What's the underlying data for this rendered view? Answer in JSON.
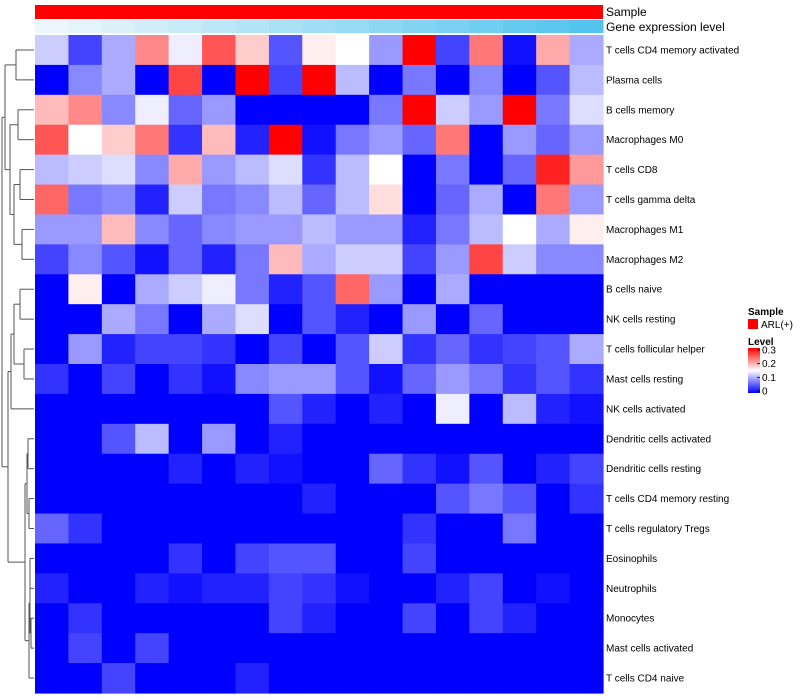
{
  "chart_data": {
    "type": "heatmap",
    "title": "",
    "annotations": [
      {
        "label": "Sample",
        "value": "ARL(+)",
        "color": "#FF0000"
      },
      {
        "label": "Gene expression level",
        "gradient": [
          "#EDF7FB",
          "#53C4EE"
        ]
      }
    ],
    "rows": [
      "T cells CD4 memory activated",
      "Plasma cells",
      "B cells memory",
      "Macrophages M0",
      "T cells CD8",
      "T cells gamma delta",
      "Macrophages M1",
      "Macrophages M2",
      "B cells naive",
      "NK cells resting",
      "T cells follicular helper",
      "Mast cells resting",
      "NK cells activated",
      "Dendritic cells activated",
      "Dendritic cells resting",
      "T cells CD4 memory resting",
      "T cells regulatory  Tregs",
      "Eosinophils",
      "Neutrophils",
      "Monocytes",
      "Mast cells activated",
      "T cells CD4 naive"
    ],
    "n_samples": 17,
    "values": [
      [
        0.12,
        0.04,
        0.1,
        0.22,
        0.14,
        0.25,
        0.18,
        0.05,
        0.16,
        0.15,
        0.09,
        0.32,
        0.04,
        0.23,
        0.01,
        0.2,
        0.1
      ],
      [
        0.0,
        0.08,
        0.1,
        0.0,
        0.26,
        0.0,
        0.3,
        0.04,
        0.31,
        0.11,
        0.0,
        0.07,
        0.0,
        0.08,
        0.0,
        0.05,
        0.11
      ],
      [
        0.19,
        0.22,
        0.08,
        0.14,
        0.06,
        0.09,
        0.0,
        0.0,
        0.0,
        0.0,
        0.07,
        0.32,
        0.12,
        0.09,
        0.32,
        0.07,
        0.13
      ],
      [
        0.25,
        0.15,
        0.18,
        0.23,
        0.03,
        0.19,
        0.02,
        0.32,
        0.01,
        0.07,
        0.09,
        0.06,
        0.23,
        0.0,
        0.09,
        0.06,
        0.09
      ],
      [
        0.11,
        0.12,
        0.13,
        0.08,
        0.2,
        0.09,
        0.11,
        0.13,
        0.03,
        0.11,
        0.15,
        0.0,
        0.07,
        0.0,
        0.06,
        0.28,
        0.21
      ],
      [
        0.24,
        0.07,
        0.08,
        0.02,
        0.12,
        0.07,
        0.08,
        0.11,
        0.06,
        0.11,
        0.17,
        0.0,
        0.06,
        0.1,
        0.0,
        0.23,
        0.09
      ],
      [
        0.09,
        0.09,
        0.19,
        0.08,
        0.06,
        0.08,
        0.09,
        0.09,
        0.11,
        0.09,
        0.09,
        0.02,
        0.07,
        0.11,
        0.15,
        0.1,
        0.16
      ],
      [
        0.04,
        0.08,
        0.05,
        0.01,
        0.06,
        0.02,
        0.07,
        0.19,
        0.1,
        0.12,
        0.12,
        0.04,
        0.09,
        0.26,
        0.12,
        0.08,
        0.08
      ],
      [
        0.0,
        0.16,
        0.0,
        0.1,
        0.12,
        0.14,
        0.07,
        0.02,
        0.05,
        0.24,
        0.09,
        0.0,
        0.1,
        0.0,
        0.0,
        0.0,
        0.0
      ],
      [
        0.0,
        0.0,
        0.1,
        0.07,
        0.0,
        0.1,
        0.13,
        0.0,
        0.05,
        0.02,
        0.0,
        0.09,
        0.0,
        0.06,
        0.0,
        0.0,
        0.0
      ],
      [
        0.0,
        0.09,
        0.02,
        0.04,
        0.04,
        0.03,
        0.0,
        0.04,
        0.0,
        0.05,
        0.12,
        0.03,
        0.06,
        0.03,
        0.04,
        0.05,
        0.1
      ],
      [
        0.03,
        0.0,
        0.04,
        0.0,
        0.03,
        0.01,
        0.08,
        0.09,
        0.09,
        0.05,
        0.01,
        0.06,
        0.09,
        0.07,
        0.03,
        0.05,
        0.03
      ],
      [
        0.0,
        0.0,
        0.0,
        0.0,
        0.0,
        0.0,
        0.0,
        0.05,
        0.02,
        0.0,
        0.02,
        0.0,
        0.14,
        0.0,
        0.11,
        0.02,
        0.01
      ],
      [
        0.0,
        0.0,
        0.05,
        0.11,
        0.0,
        0.09,
        0.0,
        0.02,
        0.0,
        0.0,
        0.0,
        0.0,
        0.0,
        0.0,
        0.0,
        0.0,
        0.0
      ],
      [
        0.0,
        0.0,
        0.0,
        0.0,
        0.02,
        0.0,
        0.02,
        0.01,
        0.0,
        0.0,
        0.06,
        0.03,
        0.01,
        0.05,
        0.0,
        0.02,
        0.04
      ],
      [
        0.0,
        0.0,
        0.0,
        0.0,
        0.0,
        0.0,
        0.0,
        0.0,
        0.02,
        0.0,
        0.0,
        0.0,
        0.05,
        0.07,
        0.05,
        0.0,
        0.03
      ],
      [
        0.06,
        0.03,
        0.0,
        0.0,
        0.0,
        0.0,
        0.0,
        0.0,
        0.0,
        0.0,
        0.0,
        0.03,
        0.0,
        0.0,
        0.07,
        0.0,
        0.0
      ],
      [
        0.0,
        0.0,
        0.0,
        0.0,
        0.03,
        0.0,
        0.04,
        0.05,
        0.05,
        0.0,
        0.0,
        0.04,
        0.0,
        0.0,
        0.0,
        0.0,
        0.0
      ],
      [
        0.02,
        0.0,
        0.0,
        0.02,
        0.01,
        0.02,
        0.02,
        0.04,
        0.03,
        0.01,
        0.0,
        0.0,
        0.02,
        0.04,
        0.0,
        0.01,
        0.0
      ],
      [
        0.0,
        0.03,
        0.0,
        0.0,
        0.0,
        0.0,
        0.0,
        0.04,
        0.02,
        0.0,
        0.0,
        0.04,
        0.0,
        0.04,
        0.02,
        0.0,
        0.0
      ],
      [
        0.0,
        0.04,
        0.0,
        0.04,
        0.0,
        0.0,
        0.0,
        0.0,
        0.0,
        0.0,
        0.0,
        0.0,
        0.0,
        0.0,
        0.0,
        0.0,
        0.0
      ],
      [
        0.0,
        0.0,
        0.04,
        0.0,
        0.0,
        0.0,
        0.02,
        0.0,
        0.0,
        0.0,
        0.0,
        0.0,
        0.0,
        0.0,
        0.0,
        0.0,
        0.0
      ]
    ],
    "color_scale": {
      "min": 0,
      "max": 0.3,
      "colors": [
        "#0000FF",
        "#FFFFFF",
        "#FF0000"
      ],
      "ticks": [
        "0",
        "0.1",
        "0.2",
        "0.3"
      ]
    },
    "legend": {
      "sample_title": "Sample",
      "sample_entry": "ARL(+)",
      "level_title": "Level",
      "placement": "right"
    },
    "row_dendrogram": true
  }
}
